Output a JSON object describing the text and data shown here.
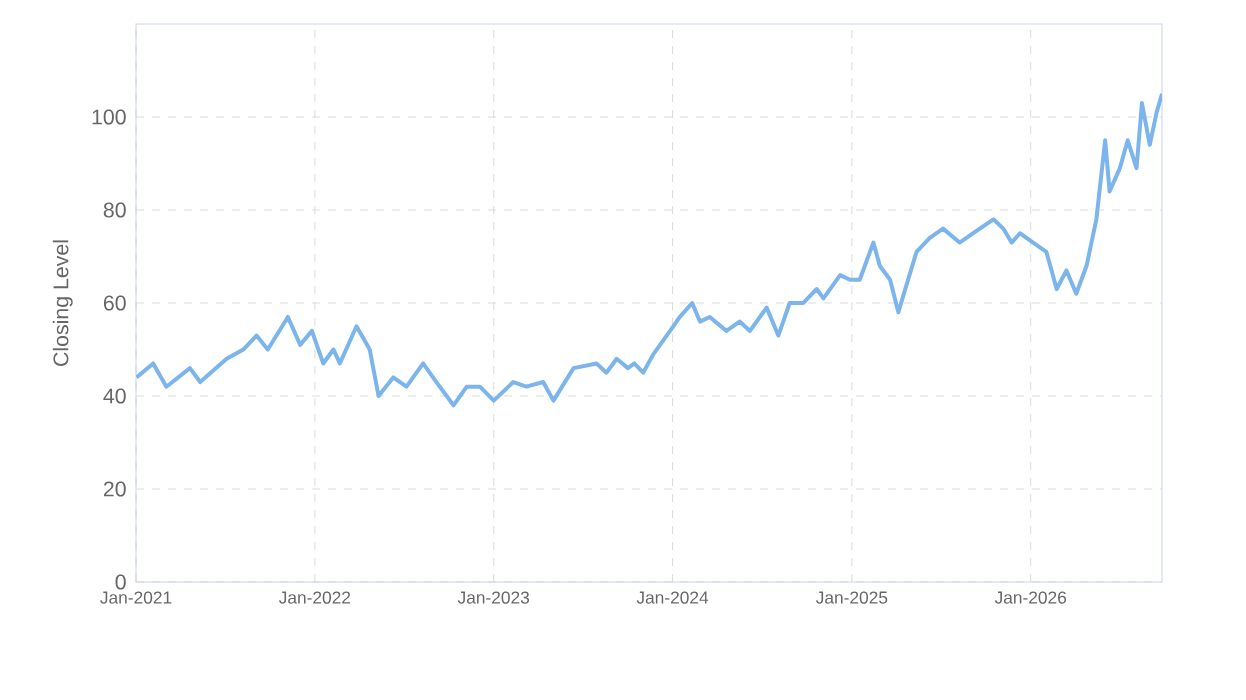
{
  "chart_data": {
    "type": "line",
    "ylabel": "Closing Level",
    "x": [
      "2021-01-02",
      "2021-02-05",
      "2021-03-04",
      "2021-04-21",
      "2021-05-12",
      "2021-07-05",
      "2021-08-08",
      "2021-09-04",
      "2021-09-27",
      "2021-11-07",
      "2021-12-02",
      "2021-12-26",
      "2022-01-18",
      "2022-02-08",
      "2022-02-21",
      "2022-03-27",
      "2022-04-23",
      "2022-05-11",
      "2022-06-10",
      "2022-07-07",
      "2022-08-10",
      "2022-09-06",
      "2022-10-11",
      "2022-11-07",
      "2022-12-04",
      "2023-01-01",
      "2023-02-10",
      "2023-03-09",
      "2023-04-12",
      "2023-05-03",
      "2023-06-13",
      "2023-07-30",
      "2023-08-19",
      "2023-09-09",
      "2023-10-02",
      "2023-10-15",
      "2023-11-02",
      "2023-11-23",
      "2023-12-27",
      "2024-01-16",
      "2024-02-10",
      "2024-02-26",
      "2024-03-17",
      "2024-04-20",
      "2024-05-17",
      "2024-06-07",
      "2024-07-11",
      "2024-08-04",
      "2024-08-27",
      "2024-09-24",
      "2024-10-21",
      "2024-11-04",
      "2024-12-08",
      "2024-12-28",
      "2025-01-17",
      "2025-02-14",
      "2025-02-27",
      "2025-03-20",
      "2025-04-06",
      "2025-04-20",
      "2025-05-13",
      "2025-06-09",
      "2025-07-06",
      "2025-08-09",
      "2025-09-19",
      "2025-10-17",
      "2025-11-06",
      "2025-11-23",
      "2025-12-10",
      "2026-01-06",
      "2026-02-02",
      "2026-02-23",
      "2026-03-15",
      "2026-04-04",
      "2026-04-25",
      "2026-05-15",
      "2026-06-02",
      "2026-06-11",
      "2026-07-02",
      "2026-07-18",
      "2026-08-05",
      "2026-08-16",
      "2026-09-01",
      "2026-09-15",
      "2026-09-26"
    ],
    "series": [
      {
        "color": "#7cb5ec",
        "values": [
          44,
          47,
          42,
          46,
          43,
          48,
          50,
          53,
          50,
          57,
          51,
          54,
          47,
          50,
          47,
          55,
          50,
          40,
          44,
          42,
          47,
          43,
          38,
          42,
          42,
          39,
          43,
          42,
          43,
          39,
          46,
          47,
          45,
          48,
          46,
          47,
          45,
          49,
          54,
          57,
          60,
          56,
          57,
          54,
          56,
          54,
          59,
          53,
          60,
          60,
          63,
          61,
          66,
          65,
          65,
          73,
          68,
          65,
          58,
          63,
          71,
          74,
          76,
          73,
          76,
          78,
          76,
          73,
          75,
          73,
          71,
          63,
          67,
          62,
          68,
          78,
          95,
          84,
          89,
          95,
          89,
          103,
          94,
          101,
          105
        ]
      }
    ],
    "xlim": [
      "2021-01-01",
      "2026-09-26"
    ],
    "xticks": [
      {
        "value": "2021-01-01",
        "label": "Jan-2021"
      },
      {
        "value": "2022-01-01",
        "label": "Jan-2022"
      },
      {
        "value": "2023-01-01",
        "label": "Jan-2023"
      },
      {
        "value": "2024-01-01",
        "label": "Jan-2024"
      },
      {
        "value": "2025-01-01",
        "label": "Jan-2025"
      },
      {
        "value": "2026-01-01",
        "label": "Jan-2026"
      }
    ],
    "ylim": [
      0,
      120
    ],
    "yticks": [
      0,
      20,
      40,
      60,
      80,
      100
    ],
    "grid": true,
    "marker": "none",
    "line_style": "solid"
  }
}
